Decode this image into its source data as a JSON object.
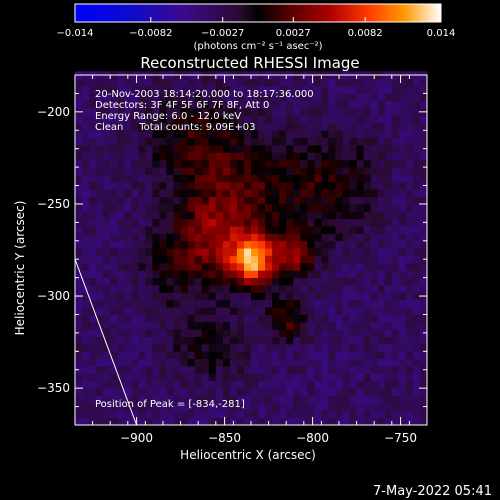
{
  "chart_data": {
    "type": "heatmap",
    "title": "Reconstructed RHESSI Image",
    "xlabel": "Heliocentric X (arcsec)",
    "ylabel": "Heliocentric Y (arcsec)",
    "xlim": [
      -935,
      -735
    ],
    "ylim": [
      -370,
      -180
    ],
    "x_ticks": [
      -900,
      -850,
      -800,
      -750
    ],
    "y_ticks": [
      -200,
      -250,
      -300,
      -350
    ],
    "x_tick_labels": [
      "−900",
      "−850",
      "−800",
      "−750"
    ],
    "y_tick_labels": [
      "−200",
      "−250",
      "−300",
      "−350"
    ],
    "colorbar": {
      "min": -0.014,
      "max": 0.014,
      "ticks": [
        -0.014,
        -0.0082,
        -0.0027,
        0.0027,
        0.0082,
        0.014
      ],
      "tick_labels": [
        "−0.014",
        "−0.0082",
        "−0.0027",
        "0.0027",
        "0.0082",
        "0.014"
      ],
      "label": "(photons cm⁻² s⁻¹ asec⁻²)"
    },
    "annotations": [
      "20-Nov-2003 18:14:20.000 to 18:17:36.000",
      "Detectors: 3F 4F 5F 6F 7F 8F, Att 0",
      "Energy Range: 6.0 - 12.0 keV",
      "Clean     Total counts: 9.09E+03"
    ],
    "peak_label": "Position of Peak = [-834,-281]",
    "peak": [
      -834,
      -281
    ],
    "limb_line": [
      [
        -935,
        -280
      ],
      [
        -900,
        -370
      ]
    ],
    "sources": [
      {
        "x": -834,
        "y": -281,
        "sigma": 9,
        "amp": 0.0135
      },
      {
        "x": -810,
        "y": -277,
        "sigma": 8,
        "amp": 0.0078
      },
      {
        "x": -855,
        "y": -268,
        "sigma": 16,
        "amp": 0.0062
      },
      {
        "x": -815,
        "y": -312,
        "sigma": 8,
        "amp": 0.0055
      },
      {
        "x": -840,
        "y": -240,
        "sigma": 22,
        "amp": 0.0045
      },
      {
        "x": -870,
        "y": -215,
        "sigma": 18,
        "amp": 0.0038
      },
      {
        "x": -790,
        "y": -240,
        "sigma": 20,
        "amp": 0.004
      },
      {
        "x": -860,
        "y": -325,
        "sigma": 15,
        "amp": 0.0032
      },
      {
        "x": -880,
        "y": -285,
        "sigma": 14,
        "amp": 0.003
      }
    ],
    "background": -0.0035
  },
  "footer": {
    "date": "7-May-2022 05:41"
  }
}
